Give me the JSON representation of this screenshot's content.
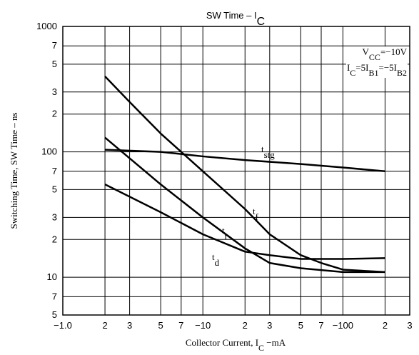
{
  "chart_data": {
    "type": "line",
    "title": [
      "SW Time  –  I",
      "C"
    ],
    "xlabel": [
      "Collector Current, I",
      "C",
      "  −mA"
    ],
    "ylabel": "Switching Time, SW Time  –  ns",
    "annotations": [
      [
        "V",
        "CC",
        "=−10V"
      ],
      [
        "I",
        "C",
        "=5I",
        "B1",
        "=−5I",
        "B2"
      ]
    ],
    "log_x": true,
    "log_y": true,
    "grid": true,
    "xlim": [
      1,
      300
    ],
    "ylim": [
      5,
      1000
    ],
    "xticks": [
      {
        "value": 1,
        "label": "−1.0"
      },
      2,
      3,
      5,
      7,
      {
        "value": 10,
        "label": "−10"
      },
      {
        "value": 20,
        "label": "2"
      },
      {
        "value": 30,
        "label": "3"
      },
      {
        "value": 50,
        "label": "5"
      },
      {
        "value": 70,
        "label": "7"
      },
      {
        "value": 100,
        "label": "−100"
      },
      {
        "value": 200,
        "label": "2"
      },
      {
        "value": 300,
        "label": "3"
      }
    ],
    "yticks": [
      1000,
      {
        "value": 700,
        "label": "7"
      },
      {
        "value": 500,
        "label": "5"
      },
      {
        "value": 300,
        "label": "3"
      },
      {
        "value": 200,
        "label": "2"
      },
      100,
      {
        "value": 70,
        "label": "7"
      },
      {
        "value": 50,
        "label": "5"
      },
      {
        "value": 30,
        "label": "3"
      },
      {
        "value": 20,
        "label": "2"
      },
      10,
      7,
      5
    ],
    "series": [
      {
        "name": "t",
        "name_sub": "stg",
        "color": "#000000",
        "x": [
          2,
          5,
          10,
          20,
          50,
          100,
          200
        ],
        "values": [
          104,
          100,
          92,
          86,
          80,
          75,
          70
        ]
      },
      {
        "name": "t",
        "name_sub": "f",
        "color": "#000000",
        "x": [
          2,
          3,
          5,
          7,
          10,
          20,
          30,
          50,
          70,
          100,
          200
        ],
        "values": [
          400,
          250,
          140,
          100,
          70,
          35,
          22,
          15,
          13,
          11.5,
          11
        ]
      },
      {
        "name": "t",
        "name_sub": "r",
        "color": "#000000",
        "x": [
          2,
          5,
          10,
          20,
          30,
          50,
          100,
          200
        ],
        "values": [
          130,
          55,
          30,
          17,
          13,
          11.8,
          11,
          11
        ]
      },
      {
        "name": "t",
        "name_sub": "d",
        "color": "#000000",
        "x": [
          2,
          5,
          10,
          20,
          30,
          50,
          100,
          200
        ],
        "values": [
          55,
          33,
          22,
          16,
          15,
          14,
          14,
          14.2
        ]
      }
    ]
  }
}
